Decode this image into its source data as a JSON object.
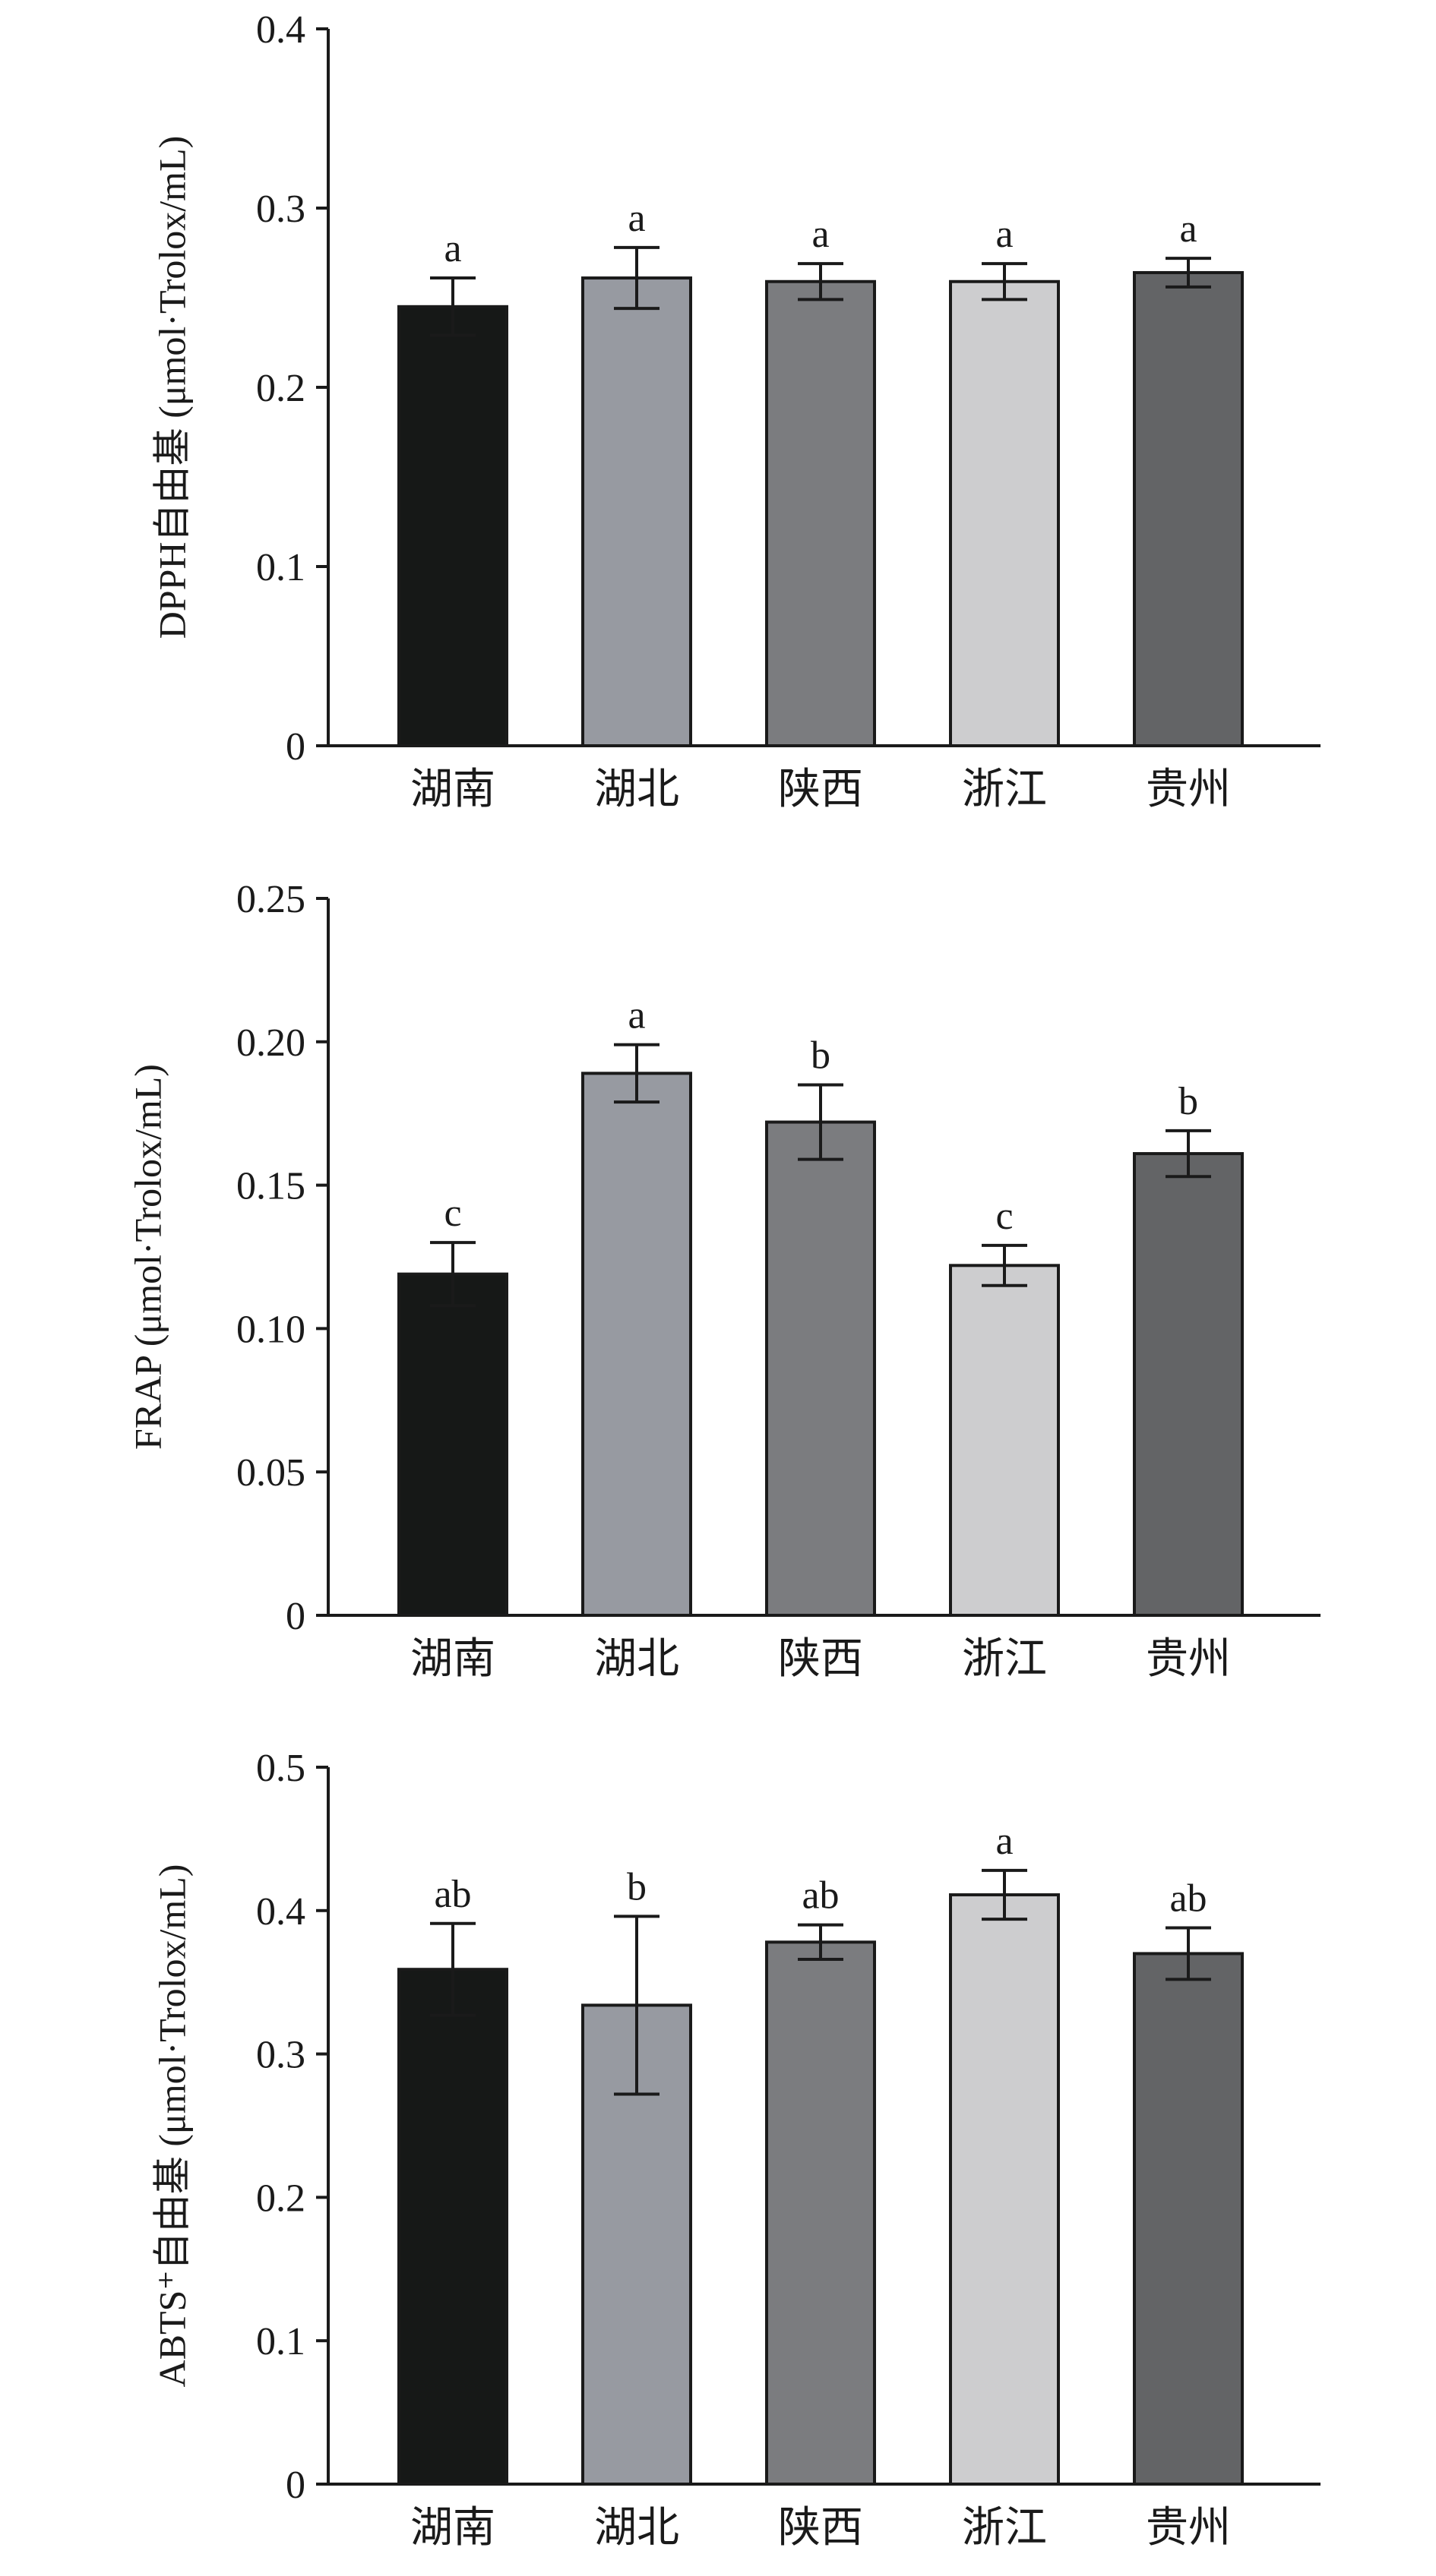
{
  "chart_data": [
    {
      "type": "bar",
      "title": "",
      "ylabel": "DPPH自由基 (μmol·Trolox/mL)",
      "xlabel": "",
      "ylim": [
        0,
        0.4
      ],
      "yticks": [
        0,
        0.1,
        0.2,
        0.3,
        0.4
      ],
      "ytick_labels": [
        "0",
        "0.1",
        "0.2",
        "0.3",
        "0.4"
      ],
      "categories": [
        "湖南",
        "湖北",
        "陕西",
        "浙江",
        "贵州"
      ],
      "values": [
        0.245,
        0.261,
        0.259,
        0.259,
        0.264
      ],
      "errors": [
        0.016,
        0.017,
        0.01,
        0.01,
        0.008
      ],
      "significance": [
        "a",
        "a",
        "a",
        "a",
        "a"
      ],
      "colors": [
        "#161817",
        "#979aa1",
        "#7b7c7f",
        "#cdcdcf",
        "#636466"
      ]
    },
    {
      "type": "bar",
      "title": "",
      "ylabel": "FRAP (μmol·Trolox/mL)",
      "xlabel": "",
      "ylim": [
        0,
        0.25
      ],
      "yticks": [
        0,
        0.05,
        0.1,
        0.15,
        0.2,
        0.25
      ],
      "ytick_labels": [
        "0",
        "0.05",
        "0.10",
        "0.15",
        "0.20",
        "0.25"
      ],
      "categories": [
        "湖南",
        "湖北",
        "陕西",
        "浙江",
        "贵州"
      ],
      "values": [
        0.119,
        0.189,
        0.172,
        0.122,
        0.161
      ],
      "errors": [
        0.011,
        0.01,
        0.013,
        0.007,
        0.008
      ],
      "significance": [
        "c",
        "a",
        "b",
        "c",
        "b"
      ],
      "colors": [
        "#161817",
        "#979aa1",
        "#7b7c7f",
        "#cdcdcf",
        "#636466"
      ]
    },
    {
      "type": "bar",
      "title": "",
      "ylabel": "ABTS⁺自由基 (μmol·Trolox/mL)",
      "xlabel": "",
      "ylim": [
        0,
        0.5
      ],
      "yticks": [
        0,
        0.1,
        0.2,
        0.3,
        0.4,
        0.5
      ],
      "ytick_labels": [
        "0",
        "0.1",
        "0.2",
        "0.3",
        "0.4",
        "0.5"
      ],
      "categories": [
        "湖南",
        "湖北",
        "陕西",
        "浙江",
        "贵州"
      ],
      "values": [
        0.359,
        0.334,
        0.378,
        0.411,
        0.37
      ],
      "errors": [
        0.032,
        0.062,
        0.012,
        0.017,
        0.018
      ],
      "significance": [
        "ab",
        "b",
        "ab",
        "a",
        "ab"
      ],
      "colors": [
        "#161817",
        "#979aa1",
        "#7b7c7f",
        "#cdcdcf",
        "#636466"
      ]
    }
  ]
}
